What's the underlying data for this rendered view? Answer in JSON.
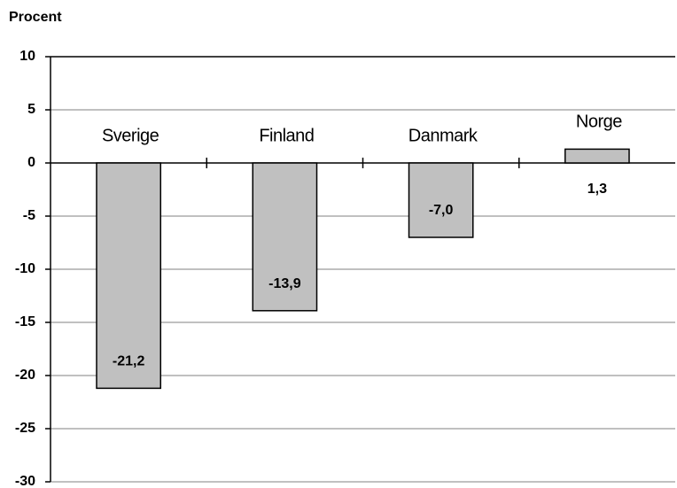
{
  "chart_data": {
    "type": "bar",
    "y_axis_label": "Procent",
    "categories": [
      "Sverige",
      "Finland",
      "Danmark",
      "Norge"
    ],
    "values": [
      -21.2,
      -13.9,
      -7.0,
      1.3
    ],
    "value_labels": [
      "-21,2",
      "-13,9",
      "-7,0",
      "1,3"
    ],
    "color": "#c0c0c0",
    "ylim": [
      -30,
      10
    ],
    "yticks": [
      10,
      5,
      0,
      -5,
      -10,
      -15,
      -20,
      -25,
      -30
    ],
    "grid": true
  }
}
